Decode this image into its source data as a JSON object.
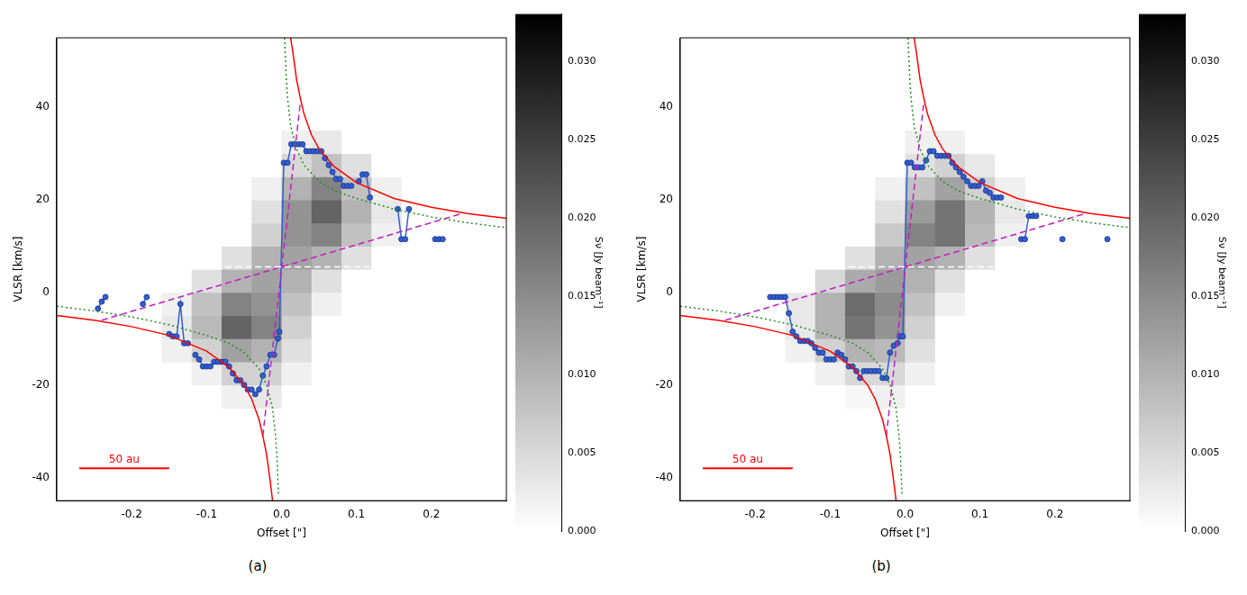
{
  "chart_data": [
    {
      "type": "scatter",
      "title": "(a)",
      "x_label": "Offset [\"]",
      "y_label": "VLSR [km/s]",
      "xlim": [
        -0.3,
        0.3
      ],
      "ylim": [
        -45,
        55
      ],
      "xticks": [
        -0.2,
        -0.1,
        {
          "value": 0,
          "label": "0.0"
        },
        0.1,
        0.2
      ],
      "yticks": [
        -40,
        -20,
        0,
        20,
        40
      ],
      "grid": false,
      "image": {
        "x_edges": [
          -0.16,
          -0.12,
          -0.08,
          -0.04,
          0,
          0.04,
          0.08,
          0.12,
          0.16
        ],
        "y_edges": [
          -25,
          -20,
          -15,
          -10,
          -5,
          0,
          5,
          10,
          15,
          20,
          25,
          30,
          35
        ],
        "values": [
          [
            0,
            0,
            0.002,
            0.003,
            0,
            0,
            0,
            0
          ],
          [
            0,
            0.002,
            0.006,
            0.006,
            0.002,
            0,
            0,
            0
          ],
          [
            0.002,
            0.006,
            0.012,
            0.01,
            0.004,
            0,
            0,
            0
          ],
          [
            0.003,
            0.009,
            0.02,
            0.016,
            0.006,
            0,
            0,
            0
          ],
          [
            0.002,
            0.008,
            0.016,
            0.014,
            0.008,
            0.002,
            0,
            0
          ],
          [
            0,
            0.004,
            0.01,
            0.012,
            0.01,
            0.004,
            0,
            0
          ],
          [
            0,
            0,
            0.004,
            0.01,
            0.012,
            0.01,
            0.004,
            0
          ],
          [
            0,
            0,
            0,
            0.006,
            0.014,
            0.016,
            0.008,
            0.002
          ],
          [
            0,
            0,
            0,
            0.004,
            0.014,
            0.02,
            0.01,
            0.003
          ],
          [
            0,
            0,
            0,
            0.002,
            0.01,
            0.016,
            0.008,
            0.002
          ],
          [
            0,
            0,
            0,
            0,
            0.005,
            0.008,
            0.004,
            0
          ],
          [
            0,
            0,
            0,
            0,
            0.002,
            0.003,
            0,
            0
          ]
        ]
      },
      "colorbar": {
        "label": "Sν [Jy beam⁻¹]",
        "lim": [
          0,
          0.033
        ],
        "ticks": [
          {
            "value": 0,
            "label": "0.000"
          },
          {
            "value": 0.005,
            "label": "0.005"
          },
          {
            "value": 0.01,
            "label": "0.010"
          },
          {
            "value": 0.015,
            "label": "0.015"
          },
          {
            "value": 0.02,
            "label": "0.020"
          },
          {
            "value": 0.025,
            "label": "0.025"
          },
          {
            "value": 0.03,
            "label": "0.030"
          }
        ]
      },
      "scale_bar": {
        "label": "50 au",
        "x": [
          -0.27,
          -0.15
        ],
        "y": -38,
        "color": "#ff0000"
      },
      "series": [
        {
          "color": "#ffffff",
          "line_style": "dashed",
          "marker": "none",
          "x": [
            -0.3,
            0.3
          ],
          "values": [
            5.5,
            5.5
          ]
        },
        {
          "color": "#ff0000",
          "line_style": "solid",
          "marker": "none",
          "x": [
            -0.3,
            -0.25,
            -0.2,
            -0.15,
            -0.1,
            -0.07,
            -0.05,
            -0.04,
            -0.03,
            -0.025,
            -0.02,
            -0.015,
            -0.012,
            null,
            0.012,
            0.015,
            0.02,
            0.025,
            0.03,
            0.04,
            0.05,
            0.07,
            0.1,
            0.15,
            0.2,
            0.25,
            0.3
          ],
          "values": [
            -5,
            -6,
            -7.4,
            -9.3,
            -12.7,
            -16.2,
            -20,
            -23,
            -27.5,
            -31,
            -35,
            -41,
            -45,
            null,
            55,
            52,
            46,
            42,
            38.5,
            34,
            31,
            27.2,
            23.7,
            20.3,
            18.4,
            17,
            16
          ]
        },
        {
          "color": "#228b22",
          "line_style": "dotted",
          "marker": "none",
          "x": [
            -0.3,
            -0.25,
            -0.2,
            -0.15,
            -0.1,
            -0.07,
            -0.05,
            -0.03,
            -0.02,
            -0.012,
            -0.008,
            -0.006,
            -0.004,
            null,
            0.004,
            0.006,
            0.008,
            0.012,
            0.02,
            0.03,
            0.05,
            0.07,
            0.1,
            0.15,
            0.2,
            0.25,
            0.3
          ],
          "values": [
            -3,
            -4,
            -5.3,
            -7,
            -9.3,
            -11,
            -13,
            -16.5,
            -20,
            -25,
            -31,
            -36,
            -44,
            null,
            55,
            47,
            42,
            36,
            31,
            27.5,
            24,
            22,
            20.3,
            18,
            16.3,
            15,
            14
          ]
        },
        {
          "color": "#c020c0",
          "line_style": "dashed",
          "marker": "none",
          "x": [
            -0.24,
            0.24,
            null,
            -0.025,
            0.025
          ],
          "values": [
            -6,
            17,
            null,
            -31,
            41
          ]
        },
        {
          "color": "#2f5fd0",
          "line_style": "solid",
          "marker": "circle",
          "x": [
            -0.245,
            -0.24,
            -0.235,
            null,
            -0.185,
            -0.18,
            null,
            -0.15,
            -0.145,
            -0.14,
            -0.135,
            -0.13,
            -0.125,
            null,
            -0.115,
            -0.11,
            -0.105,
            -0.1,
            -0.095,
            -0.09,
            -0.085,
            -0.08,
            -0.075,
            -0.07,
            -0.065,
            -0.06,
            -0.055,
            -0.05,
            -0.045,
            -0.04,
            -0.035,
            -0.03,
            -0.025,
            -0.02,
            -0.015,
            -0.01,
            -0.005,
            -0.003,
            0.003,
            0.008,
            0.013,
            0.018,
            0.023,
            0.028,
            0.033,
            0.038,
            0.043,
            0.048,
            0.053,
            0.058,
            0.063,
            0.068,
            0.073,
            0.078,
            0.083,
            0.088,
            0.093,
            null,
            0.103,
            0.108,
            0.113,
            0.118,
            null,
            0.155,
            0.16,
            0.165,
            0.17,
            null,
            0.205,
            0.21,
            0.215
          ],
          "values": [
            -3.5,
            -2,
            -1,
            null,
            -2.5,
            -1,
            null,
            -9,
            -9.5,
            -9.5,
            -2.5,
            -11,
            -11,
            null,
            -13.5,
            -14.5,
            -16,
            -16,
            -16,
            -15,
            -15,
            -15,
            -15,
            -16,
            -17.5,
            -19,
            -19,
            -20,
            -21,
            -21,
            -22,
            -21,
            -18,
            -16,
            -13.5,
            -13.5,
            -10,
            -8.5,
            28,
            28,
            32,
            32,
            32,
            32,
            30.5,
            30.5,
            30.5,
            30.5,
            30.5,
            29,
            27.5,
            26,
            24.5,
            24.5,
            23,
            23,
            23,
            null,
            24,
            25.5,
            25.5,
            20.5,
            null,
            18,
            11.5,
            11.5,
            18,
            null,
            11.5,
            11.5,
            11.5
          ]
        }
      ]
    },
    {
      "type": "scatter",
      "title": "(b)",
      "x_label": "Offset [\"]",
      "y_label": "VLSR [km/s]",
      "xlim": [
        -0.3,
        0.3
      ],
      "ylim": [
        -45,
        55
      ],
      "xticks": [
        -0.2,
        -0.1,
        {
          "value": 0,
          "label": "0.0"
        },
        0.1,
        0.2
      ],
      "yticks": [
        -40,
        -20,
        0,
        20,
        40
      ],
      "grid": false,
      "image": {
        "x_edges": [
          -0.16,
          -0.12,
          -0.08,
          -0.04,
          0,
          0.04,
          0.08,
          0.12,
          0.16
        ],
        "y_edges": [
          -25,
          -20,
          -15,
          -10,
          -5,
          0,
          5,
          10,
          15,
          20,
          25,
          30,
          35
        ],
        "values": [
          [
            0,
            0,
            0.001,
            0.002,
            0,
            0,
            0,
            0
          ],
          [
            0,
            0.002,
            0.005,
            0.005,
            0.002,
            0,
            0,
            0
          ],
          [
            0.002,
            0.006,
            0.01,
            0.009,
            0.004,
            0,
            0,
            0
          ],
          [
            0.003,
            0.01,
            0.018,
            0.014,
            0.006,
            0,
            0,
            0
          ],
          [
            0.003,
            0.01,
            0.019,
            0.015,
            0.008,
            0.002,
            0,
            0
          ],
          [
            0,
            0.005,
            0.011,
            0.013,
            0.01,
            0.004,
            0,
            0
          ],
          [
            0,
            0,
            0.004,
            0.01,
            0.012,
            0.01,
            0.004,
            0
          ],
          [
            0,
            0,
            0,
            0.007,
            0.016,
            0.018,
            0.009,
            0.002
          ],
          [
            0,
            0,
            0,
            0.004,
            0.013,
            0.018,
            0.01,
            0.003
          ],
          [
            0,
            0,
            0,
            0.002,
            0.008,
            0.012,
            0.006,
            0.002
          ],
          [
            0,
            0,
            0,
            0,
            0.004,
            0.006,
            0.003,
            0
          ],
          [
            0,
            0,
            0,
            0,
            0.002,
            0.002,
            0,
            0
          ]
        ]
      },
      "colorbar": {
        "label": "Sν [Jy beam⁻¹]",
        "lim": [
          0,
          0.033
        ],
        "ticks": [
          {
            "value": 0,
            "label": "0.000"
          },
          {
            "value": 0.005,
            "label": "0.005"
          },
          {
            "value": 0.01,
            "label": "0.010"
          },
          {
            "value": 0.015,
            "label": "0.015"
          },
          {
            "value": 0.02,
            "label": "0.020"
          },
          {
            "value": 0.025,
            "label": "0.025"
          },
          {
            "value": 0.03,
            "label": "0.030"
          }
        ]
      },
      "scale_bar": {
        "label": "50 au",
        "x": [
          -0.27,
          -0.15
        ],
        "y": -38,
        "color": "#ff0000"
      },
      "series": [
        {
          "color": "#ffffff",
          "line_style": "dashed",
          "marker": "none",
          "x": [
            -0.3,
            0.3
          ],
          "values": [
            5.5,
            5.5
          ]
        },
        {
          "color": "#ff0000",
          "line_style": "solid",
          "marker": "none",
          "x": [
            -0.3,
            -0.25,
            -0.2,
            -0.15,
            -0.1,
            -0.07,
            -0.05,
            -0.04,
            -0.03,
            -0.025,
            -0.02,
            -0.015,
            -0.012,
            null,
            0.012,
            0.015,
            0.02,
            0.025,
            0.03,
            0.04,
            0.05,
            0.07,
            0.1,
            0.15,
            0.2,
            0.25,
            0.3
          ],
          "values": [
            -5,
            -6,
            -7.4,
            -9.3,
            -12.7,
            -16.2,
            -20,
            -23,
            -27.5,
            -31,
            -35,
            -41,
            -45,
            null,
            55,
            52,
            46,
            42,
            38.5,
            34,
            31,
            27.2,
            23.7,
            20.3,
            18.4,
            17,
            16
          ]
        },
        {
          "color": "#228b22",
          "line_style": "dotted",
          "marker": "none",
          "x": [
            -0.3,
            -0.25,
            -0.2,
            -0.15,
            -0.1,
            -0.07,
            -0.05,
            -0.03,
            -0.02,
            -0.012,
            -0.008,
            -0.006,
            -0.004,
            null,
            0.004,
            0.006,
            0.008,
            0.012,
            0.02,
            0.03,
            0.05,
            0.07,
            0.1,
            0.15,
            0.2,
            0.25,
            0.3
          ],
          "values": [
            -3,
            -4,
            -5.3,
            -7,
            -9.3,
            -11,
            -13,
            -16.5,
            -20,
            -25,
            -31,
            -36,
            -44,
            null,
            55,
            47,
            42,
            36,
            31,
            27.5,
            24,
            22,
            20.3,
            18,
            16.3,
            15,
            14
          ]
        },
        {
          "color": "#c020c0",
          "line_style": "dashed",
          "marker": "none",
          "x": [
            -0.24,
            0.24,
            null,
            -0.025,
            0.025
          ],
          "values": [
            -6,
            17,
            null,
            -31,
            41
          ]
        },
        {
          "color": "#2f5fd0",
          "line_style": "solid",
          "marker": "circle",
          "x": [
            -0.18,
            -0.175,
            -0.17,
            -0.165,
            -0.16,
            -0.155,
            -0.15,
            -0.145,
            -0.14,
            -0.135,
            -0.13,
            -0.125,
            -0.12,
            -0.115,
            -0.11,
            -0.105,
            -0.1,
            -0.095,
            -0.09,
            -0.085,
            -0.08,
            -0.075,
            -0.07,
            -0.065,
            -0.06,
            -0.055,
            -0.05,
            -0.045,
            -0.04,
            -0.035,
            -0.03,
            -0.025,
            -0.02,
            -0.015,
            -0.01,
            -0.007,
            -0.003,
            0.003,
            0.008,
            0.013,
            0.018,
            0.023,
            0.028,
            0.033,
            0.038,
            0.043,
            0.048,
            0.053,
            0.058,
            0.063,
            0.068,
            0.073,
            0.078,
            0.083,
            0.088,
            0.093,
            0.098,
            0.103,
            0.108,
            0.113,
            0.118,
            0.123,
            0.128,
            null,
            0.155,
            0.16,
            0.165,
            0.17,
            0.175,
            null,
            0.21,
            null,
            0.27
          ],
          "values": [
            -1,
            -1,
            -1,
            -1,
            -1,
            -4.5,
            -8.5,
            -9.5,
            -10.5,
            -10.5,
            -10.5,
            -11,
            -12,
            -13,
            -13,
            -14.5,
            -14.5,
            -14.5,
            -13,
            -13.5,
            -14.5,
            -16,
            -16,
            -17,
            -18.5,
            -17,
            -17,
            -17,
            -17,
            -17,
            -18.5,
            -18.5,
            -13,
            -11.5,
            -11,
            -9.5,
            -9.5,
            28,
            28,
            27,
            27,
            27,
            28.5,
            30.5,
            30.5,
            29.5,
            29.5,
            29.5,
            29.5,
            28,
            27,
            26,
            25,
            24,
            23,
            23,
            23,
            24,
            22,
            21.5,
            20.5,
            20.5,
            20.5,
            null,
            11.5,
            11.5,
            16.5,
            16.5,
            16.5,
            null,
            11.5,
            null,
            11.5
          ]
        }
      ]
    }
  ]
}
